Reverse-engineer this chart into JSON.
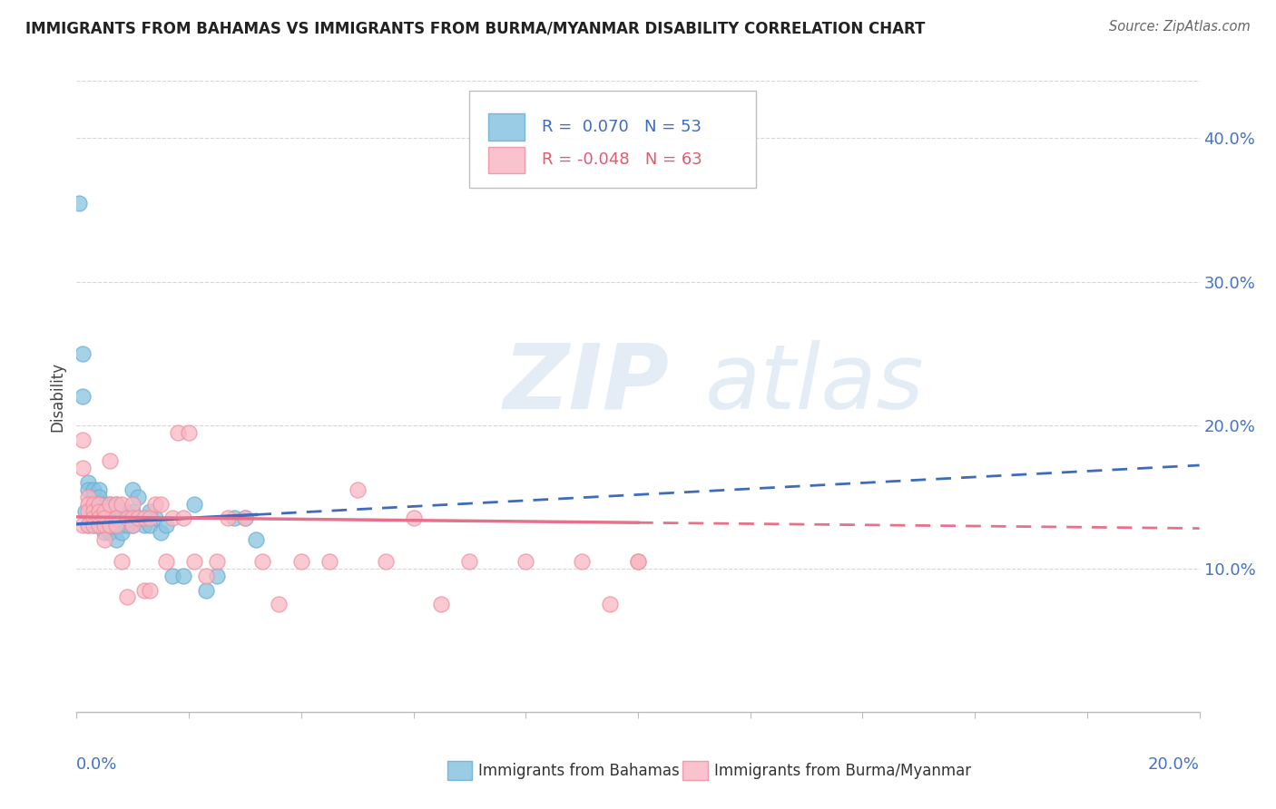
{
  "title": "IMMIGRANTS FROM BAHAMAS VS IMMIGRANTS FROM BURMA/MYANMAR DISABILITY CORRELATION CHART",
  "source": "Source: ZipAtlas.com",
  "ylabel": "Disability",
  "xlim": [
    0.0,
    0.2
  ],
  "ylim": [
    0.0,
    0.44
  ],
  "yticks": [
    0.1,
    0.2,
    0.3,
    0.4
  ],
  "ytick_labels": [
    "10.0%",
    "20.0%",
    "30.0%",
    "40.0%"
  ],
  "series_bahamas": {
    "label": "Immigrants from Bahamas",
    "scatter_color": "#89c4e1",
    "scatter_edge": "#6aafd4",
    "R": 0.07,
    "N": 53,
    "x": [
      0.0005,
      0.001,
      0.001,
      0.0015,
      0.002,
      0.002,
      0.002,
      0.003,
      0.003,
      0.003,
      0.003,
      0.004,
      0.004,
      0.004,
      0.004,
      0.004,
      0.005,
      0.005,
      0.005,
      0.005,
      0.005,
      0.006,
      0.006,
      0.006,
      0.006,
      0.006,
      0.007,
      0.007,
      0.007,
      0.008,
      0.008,
      0.008,
      0.009,
      0.009,
      0.01,
      0.01,
      0.01,
      0.011,
      0.012,
      0.012,
      0.013,
      0.013,
      0.014,
      0.015,
      0.016,
      0.017,
      0.019,
      0.021,
      0.023,
      0.025,
      0.028,
      0.03,
      0.032
    ],
    "y": [
      0.355,
      0.25,
      0.22,
      0.14,
      0.16,
      0.155,
      0.13,
      0.155,
      0.15,
      0.14,
      0.13,
      0.155,
      0.15,
      0.145,
      0.14,
      0.13,
      0.145,
      0.14,
      0.135,
      0.13,
      0.125,
      0.145,
      0.14,
      0.135,
      0.13,
      0.125,
      0.145,
      0.135,
      0.12,
      0.14,
      0.13,
      0.125,
      0.14,
      0.13,
      0.155,
      0.14,
      0.13,
      0.15,
      0.135,
      0.13,
      0.14,
      0.13,
      0.135,
      0.125,
      0.13,
      0.095,
      0.095,
      0.145,
      0.085,
      0.095,
      0.135,
      0.135,
      0.12
    ]
  },
  "series_burma": {
    "label": "Immigrants from Burma/Myanmar",
    "scatter_color": "#f9b8c4",
    "scatter_edge": "#f090a0",
    "R": -0.048,
    "N": 63,
    "x": [
      0.001,
      0.001,
      0.001,
      0.002,
      0.002,
      0.002,
      0.002,
      0.003,
      0.003,
      0.003,
      0.003,
      0.004,
      0.004,
      0.004,
      0.004,
      0.005,
      0.005,
      0.005,
      0.005,
      0.006,
      0.006,
      0.006,
      0.007,
      0.007,
      0.007,
      0.008,
      0.008,
      0.009,
      0.009,
      0.01,
      0.01,
      0.01,
      0.011,
      0.012,
      0.012,
      0.013,
      0.013,
      0.014,
      0.015,
      0.016,
      0.017,
      0.018,
      0.019,
      0.02,
      0.021,
      0.023,
      0.025,
      0.027,
      0.03,
      0.033,
      0.036,
      0.04,
      0.045,
      0.05,
      0.055,
      0.06,
      0.065,
      0.07,
      0.08,
      0.09,
      0.095,
      0.1,
      0.1
    ],
    "y": [
      0.19,
      0.17,
      0.13,
      0.15,
      0.145,
      0.14,
      0.13,
      0.145,
      0.14,
      0.135,
      0.13,
      0.145,
      0.14,
      0.135,
      0.13,
      0.14,
      0.135,
      0.13,
      0.12,
      0.175,
      0.145,
      0.13,
      0.145,
      0.135,
      0.13,
      0.145,
      0.105,
      0.135,
      0.08,
      0.145,
      0.135,
      0.13,
      0.135,
      0.135,
      0.085,
      0.135,
      0.085,
      0.145,
      0.145,
      0.105,
      0.135,
      0.195,
      0.135,
      0.195,
      0.105,
      0.095,
      0.105,
      0.135,
      0.135,
      0.105,
      0.075,
      0.105,
      0.105,
      0.155,
      0.105,
      0.135,
      0.075,
      0.105,
      0.105,
      0.105,
      0.075,
      0.105,
      0.105
    ]
  },
  "trend_bahamas": {
    "line_color": "#3f6bbf",
    "x_solid_end": 0.032,
    "x_full_end": 0.2,
    "y_at_0": 0.131,
    "y_at_end": 0.172
  },
  "trend_burma": {
    "line_color": "#e8708a",
    "x_solid_end": 0.1,
    "x_full_end": 0.2,
    "y_at_0": 0.136,
    "y_at_end": 0.128
  },
  "watermark_zip": "ZIP",
  "watermark_atlas": "atlas",
  "watermark_color_zip": "#c5d9ed",
  "watermark_color_atlas": "#c5d9ed",
  "background_color": "#ffffff",
  "grid_color": "#cccccc",
  "grid_style": "--"
}
